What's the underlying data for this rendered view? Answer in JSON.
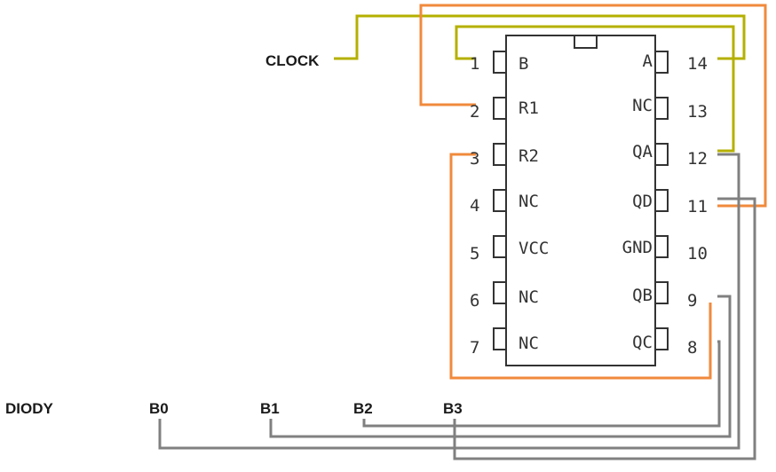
{
  "labels": {
    "clock": "CLOCK",
    "diody": "DIODY",
    "b0": "B0",
    "b1": "B1",
    "b2": "B2",
    "b3": "B3"
  },
  "chip": {
    "left_pins": [
      {
        "num": "1",
        "name": "B"
      },
      {
        "num": "2",
        "name": "R1"
      },
      {
        "num": "3",
        "name": "R2"
      },
      {
        "num": "4",
        "name": "NC"
      },
      {
        "num": "5",
        "name": "VCC"
      },
      {
        "num": "6",
        "name": "NC"
      },
      {
        "num": "7",
        "name": "NC"
      }
    ],
    "right_pins": [
      {
        "num": "14",
        "name": "A"
      },
      {
        "num": "13",
        "name": "NC"
      },
      {
        "num": "12",
        "name": "QA"
      },
      {
        "num": "11",
        "name": "QD"
      },
      {
        "num": "10",
        "name": "GND"
      },
      {
        "num": "9",
        "name": "QB"
      },
      {
        "num": "8",
        "name": "QC"
      }
    ]
  },
  "colors": {
    "clock_wire": "#b5b000",
    "reset_wire": "#f08a3c",
    "output_wire": "#808080",
    "chip_outline": "#333333"
  }
}
